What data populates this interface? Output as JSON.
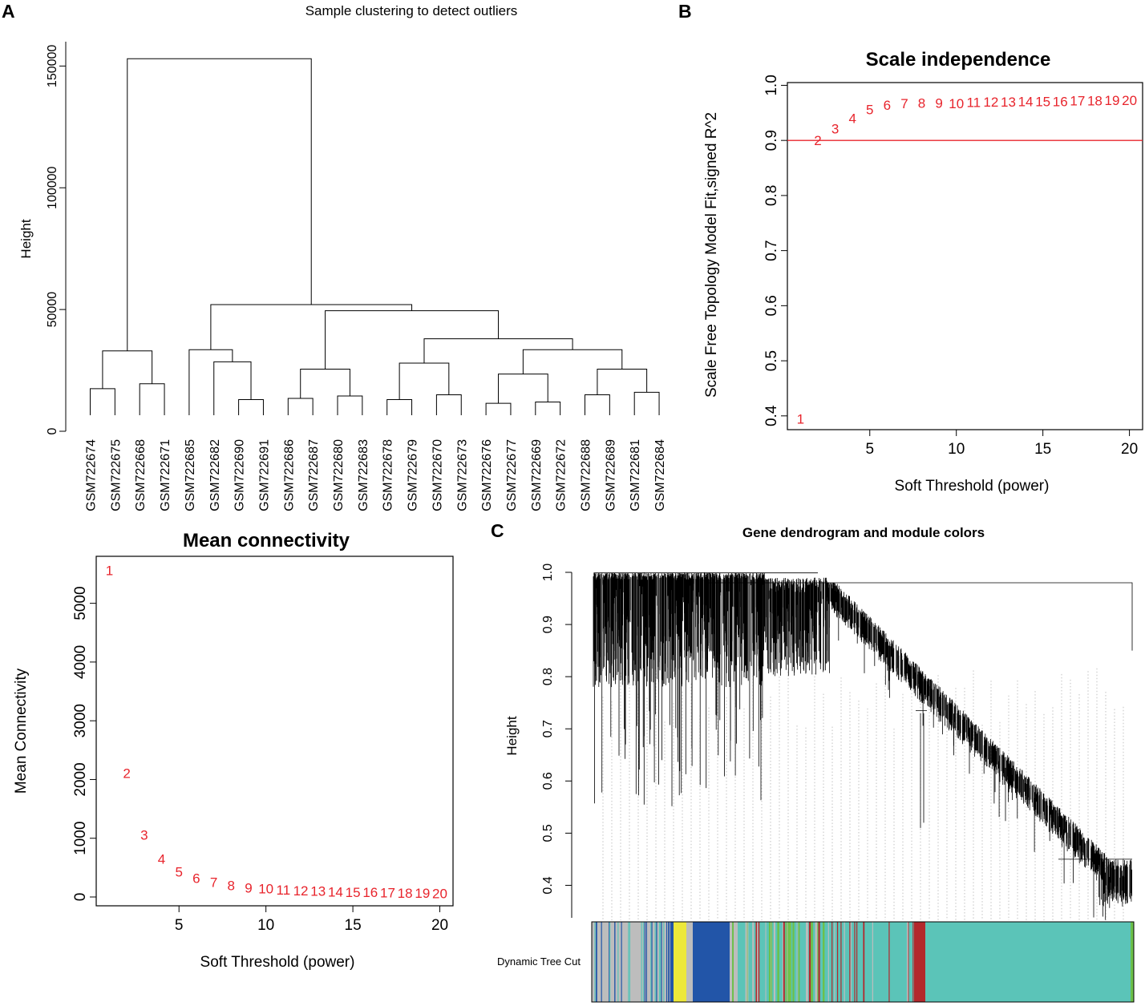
{
  "panel_labels": {
    "a": "A",
    "b": "B",
    "c": "C"
  },
  "colors": {
    "red": "#e8242c",
    "black": "#000000",
    "turquoise": "#5bc4b8",
    "grey": "#bdbdbd",
    "blue": "#2255a8",
    "yellow": "#ede83a",
    "brown": "#b3282c",
    "green": "#6cc04a"
  },
  "chart_data": [
    {
      "type": "dendrogram",
      "id": "sample_clustering",
      "title": "Sample clustering to detect outliers",
      "xlabel": "",
      "ylabel": "Height",
      "ylim": [
        0,
        160000
      ],
      "yticks": [
        0,
        50000,
        100000,
        150000
      ],
      "yticklabels": [
        "0",
        "50000",
        "100000",
        "150000"
      ],
      "leaves": [
        "GSM722674",
        "GSM722675",
        "GSM722668",
        "GSM722671",
        "GSM722685",
        "GSM722682",
        "GSM722690",
        "GSM722691",
        "GSM722686",
        "GSM722687",
        "GSM722680",
        "GSM722683",
        "GSM722678",
        "GSM722679",
        "GSM722670",
        "GSM722673",
        "GSM722676",
        "GSM722677",
        "GSM722669",
        "GSM722672",
        "GSM722688",
        "GSM722689",
        "GSM722681",
        "GSM722684"
      ],
      "merges": [
        {
          "a": 0,
          "b": 1,
          "h": 17500
        },
        {
          "a": 2,
          "b": 3,
          "h": 19500
        },
        {
          "a": 24,
          "b": 25,
          "h": 33000
        },
        {
          "a": 6,
          "b": 7,
          "h": 13000
        },
        {
          "a": 5,
          "b": 27,
          "h": 28500
        },
        {
          "a": 4,
          "b": 28,
          "h": 33500
        },
        {
          "a": 8,
          "b": 9,
          "h": 13500
        },
        {
          "a": 10,
          "b": 11,
          "h": 14500
        },
        {
          "a": 30,
          "b": 31,
          "h": 25500
        },
        {
          "a": 12,
          "b": 13,
          "h": 13000
        },
        {
          "a": 14,
          "b": 15,
          "h": 15000
        },
        {
          "a": 33,
          "b": 34,
          "h": 28000
        },
        {
          "a": 16,
          "b": 17,
          "h": 11500
        },
        {
          "a": 18,
          "b": 19,
          "h": 12000
        },
        {
          "a": 36,
          "b": 37,
          "h": 23500
        },
        {
          "a": 20,
          "b": 21,
          "h": 15000
        },
        {
          "a": 22,
          "b": 23,
          "h": 16000
        },
        {
          "a": 39,
          "b": 40,
          "h": 25500
        },
        {
          "a": 38,
          "b": 41,
          "h": 33500
        },
        {
          "a": 35,
          "b": 42,
          "h": 38000
        },
        {
          "a": 32,
          "b": 43,
          "h": 49500
        },
        {
          "a": 29,
          "b": 44,
          "h": 52000
        },
        {
          "a": 26,
          "b": 45,
          "h": 153000
        }
      ]
    },
    {
      "type": "scatter",
      "id": "scale_independence",
      "title": "Scale independence",
      "xlabel": "Soft Threshold (power)",
      "ylabel": "Scale Free Topology Model Fit,signed R^2",
      "xlim": [
        0.24,
        20.76
      ],
      "ylim": [
        0.375,
        1.005
      ],
      "xticks": [
        5,
        10,
        15,
        20
      ],
      "yticks": [
        0.4,
        0.5,
        0.6,
        0.7,
        0.8,
        0.9,
        1.0
      ],
      "yticklabels": [
        "0.4",
        "0.5",
        "0.6",
        "0.7",
        "0.8",
        "0.9",
        "1.0"
      ],
      "x": [
        1,
        2,
        3,
        4,
        5,
        6,
        7,
        8,
        9,
        10,
        11,
        12,
        13,
        14,
        15,
        16,
        17,
        18,
        19,
        20
      ],
      "y": [
        0.395,
        0.9,
        0.921,
        0.94,
        0.956,
        0.964,
        0.967,
        0.968,
        0.968,
        0.967,
        0.969,
        0.97,
        0.97,
        0.971,
        0.971,
        0.971,
        0.972,
        0.972,
        0.973,
        0.973
      ],
      "point_labels": [
        "1",
        "2",
        "3",
        "4",
        "5",
        "6",
        "7",
        "8",
        "9",
        "10",
        "11",
        "12",
        "13",
        "14",
        "15",
        "16",
        "17",
        "18",
        "19",
        "20"
      ],
      "hline": 0.9
    },
    {
      "type": "scatter",
      "id": "mean_connectivity",
      "title": "Mean connectivity",
      "xlabel": "Soft Threshold (power)",
      "ylabel": "Mean Connectivity",
      "xlim": [
        0.24,
        20.76
      ],
      "ylim": [
        -150,
        5800
      ],
      "xticks": [
        5,
        10,
        15,
        20
      ],
      "yticks": [
        0,
        1000,
        2000,
        3000,
        4000,
        5000
      ],
      "yticklabels": [
        "0",
        "1000",
        "2000",
        "3000",
        "4000",
        "5000"
      ],
      "x": [
        1,
        2,
        3,
        4,
        5,
        6,
        7,
        8,
        9,
        10,
        11,
        12,
        13,
        14,
        15,
        16,
        17,
        18,
        19,
        20
      ],
      "y": [
        5560,
        2110,
        1060,
        650,
        430,
        320,
        250,
        200,
        160,
        140,
        120,
        110,
        100,
        90,
        85,
        80,
        75,
        70,
        65,
        60
      ],
      "point_labels": [
        "1",
        "2",
        "3",
        "4",
        "5",
        "6",
        "7",
        "8",
        "9",
        "10",
        "11",
        "12",
        "13",
        "14",
        "15",
        "16",
        "17",
        "18",
        "19",
        "20"
      ]
    },
    {
      "type": "dendrogram",
      "id": "gene_dendrogram",
      "title": "Gene dendrogram and module colors",
      "ylabel": "Height",
      "ylim": [
        0.33,
        1.0
      ],
      "yticks": [
        0.4,
        0.5,
        0.6,
        0.7,
        0.8,
        0.9,
        1.0
      ],
      "yticklabels": [
        "0.4",
        "0.5",
        "0.6",
        "0.7",
        "0.8",
        "0.9",
        "1.0"
      ],
      "color_bar_label": "Dynamic Tree Cut",
      "modules": [
        "grey",
        "blue",
        "yellow",
        "turquoise",
        "brown",
        "green"
      ]
    }
  ]
}
